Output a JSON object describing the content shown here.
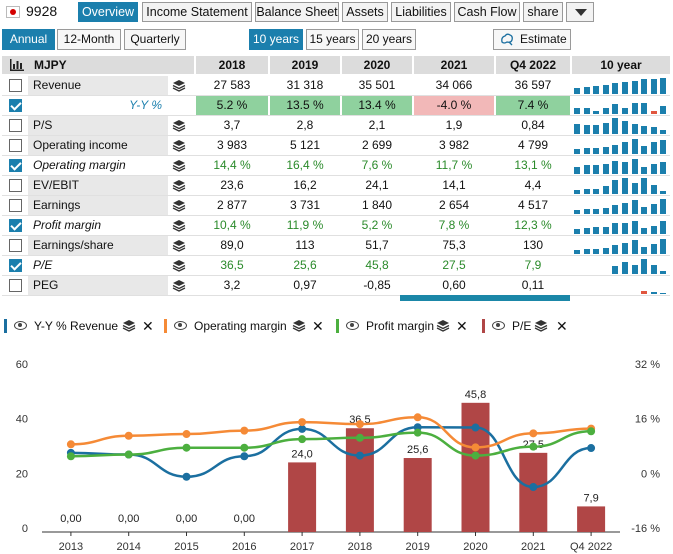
{
  "header": {
    "ticker": "9928",
    "tabs": [
      "Overview",
      "Income Statement",
      "Balance Sheet",
      "Assets",
      "Liabilities",
      "Cash Flow",
      "share"
    ],
    "active_tab": "Overview"
  },
  "toolbar": {
    "periods": [
      "Annual",
      "12-Month",
      "Quarterly"
    ],
    "active_period": "Annual",
    "ranges": [
      "10 years",
      "15 years",
      "20 years"
    ],
    "active_range": "10 years",
    "estimate_label": "Estimate"
  },
  "table": {
    "corner_label": "MJPY",
    "columns": [
      "2018",
      "2019",
      "2020",
      "2021",
      "Q4 2022"
    ],
    "spark_header": "10 year",
    "rows": [
      {
        "label": "Revenue",
        "checked": false,
        "values": [
          "27 583",
          "31 318",
          "35 501",
          "34 066",
          "36 597"
        ]
      },
      {
        "label": "Y-Y %",
        "checked": true,
        "values": [
          "5.2 %",
          "13.5 %",
          "13.4 %",
          "-4.0 %",
          "7.4 %"
        ]
      },
      {
        "label": "P/S",
        "checked": false,
        "values": [
          "3,7",
          "2,8",
          "2,1",
          "1,9",
          "0,84"
        ]
      },
      {
        "label": "Operating income",
        "checked": false,
        "values": [
          "3 983",
          "5 121",
          "2 699",
          "3 982",
          "4 799"
        ]
      },
      {
        "label": "Operating margin",
        "checked": true,
        "values": [
          "14,4 %",
          "16,4 %",
          "7,6 %",
          "11,7 %",
          "13,1 %"
        ]
      },
      {
        "label": "EV/EBIT",
        "checked": false,
        "values": [
          "23,6",
          "16,2",
          "24,1",
          "14,1",
          "4,4"
        ]
      },
      {
        "label": "Earnings",
        "checked": false,
        "values": [
          "2 877",
          "3 731",
          "1 840",
          "2 654",
          "4 517"
        ]
      },
      {
        "label": "Profit margin",
        "checked": true,
        "values": [
          "10,4 %",
          "11,9 %",
          "5,2 %",
          "7,8 %",
          "12,3 %"
        ]
      },
      {
        "label": "Earnings/share",
        "checked": false,
        "values": [
          "89,0",
          "113",
          "51,7",
          "75,3",
          "130"
        ]
      },
      {
        "label": "P/E",
        "checked": true,
        "values": [
          "36,5",
          "25,6",
          "45,8",
          "27,5",
          "7,9"
        ]
      },
      {
        "label": "PEG",
        "checked": false,
        "values": [
          "3,2",
          "0,97",
          "-0,85",
          "0,60",
          "0,11"
        ]
      }
    ]
  },
  "legend": [
    {
      "label": "Y-Y % Revenue",
      "color": "#1b6fa0"
    },
    {
      "label": "Operating margin",
      "color": "#f58a36"
    },
    {
      "label": "Profit margin",
      "color": "#4caf3f"
    },
    {
      "label": "P/E",
      "color": "#b04646"
    }
  ],
  "chart_data": {
    "type": "bar",
    "categories": [
      "2013",
      "2014",
      "2015",
      "2016",
      "2017",
      "2018",
      "2019",
      "2020",
      "2021",
      "Q4 2022"
    ],
    "y_left_ticks": [
      "0",
      "20",
      "40",
      "60"
    ],
    "ylim_left": [
      0,
      60
    ],
    "y_right_ticks": [
      "-16 %",
      "0 %",
      "16 %",
      "32 %"
    ],
    "ylim_right": [
      -16,
      32
    ],
    "series": [
      {
        "name": "P/E",
        "kind": "bar",
        "axis": "left",
        "color": "#b04646",
        "values": [
          0,
          0,
          0,
          0,
          24.0,
          36.5,
          25.6,
          45.8,
          27.5,
          7.9
        ],
        "labels": [
          "0,00",
          "0,00",
          "0,00",
          "0,00",
          "24,0",
          "36,5",
          "25,6",
          "45,8",
          "27,5",
          "7,9"
        ]
      },
      {
        "name": "Y-Y % Revenue",
        "kind": "line",
        "axis": "right",
        "color": "#1b6fa0",
        "values": [
          6.0,
          5.5,
          -1.0,
          5.0,
          13.0,
          5.2,
          13.5,
          13.4,
          -4.0,
          7.4
        ]
      },
      {
        "name": "Operating margin",
        "kind": "line",
        "axis": "right",
        "color": "#f58a36",
        "values": [
          8.5,
          11.0,
          11.5,
          12.5,
          15.0,
          14.4,
          16.4,
          7.6,
          11.7,
          13.1
        ]
      },
      {
        "name": "Profit margin",
        "kind": "line",
        "axis": "right",
        "color": "#4caf3f",
        "values": [
          5.0,
          5.5,
          7.5,
          7.5,
          10.0,
          10.4,
          11.9,
          5.2,
          7.8,
          12.3
        ]
      }
    ]
  }
}
